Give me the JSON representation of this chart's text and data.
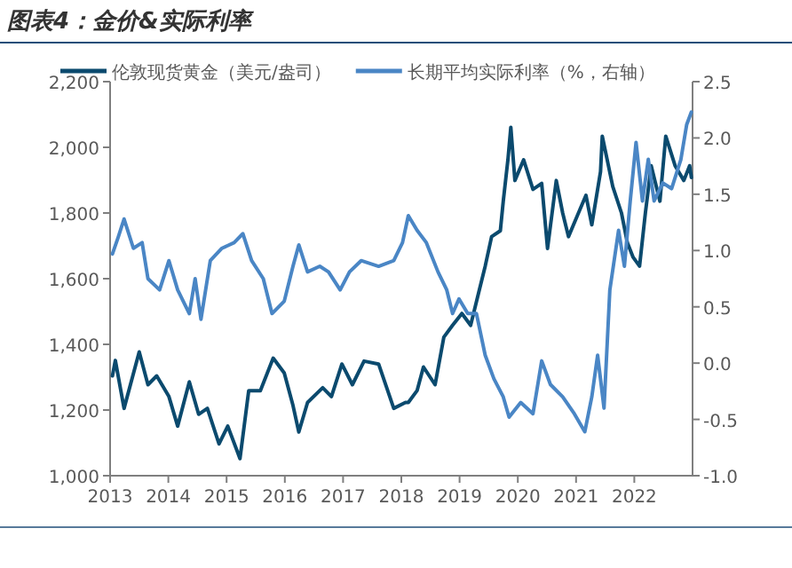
{
  "chart_data": {
    "type": "line",
    "title": "图表4：金价&实际利率",
    "legend": "top",
    "marker": "none",
    "line_style": "solid",
    "grid": false,
    "xlim": [
      2013,
      2023
    ],
    "xticks": [
      2013,
      2014,
      2015,
      2016,
      2017,
      2018,
      2019,
      2020,
      2021,
      2022
    ],
    "ylim": [
      1000,
      2200
    ],
    "yticks": [
      {
        "value": 1000,
        "label": "1,000"
      },
      {
        "value": 1200,
        "label": "1,200"
      },
      {
        "value": 1400,
        "label": "1,400"
      },
      {
        "value": 1600,
        "label": "1,600"
      },
      {
        "value": 1800,
        "label": "1,800"
      },
      {
        "value": 2000,
        "label": "2,000"
      },
      {
        "value": 2200,
        "label": "2,200"
      }
    ],
    "y2lim": [
      -1.0,
      2.5
    ],
    "y2ticks": [
      {
        "value": -1,
        "label": "-1.0"
      },
      {
        "value": -0.5,
        "label": "-0.5"
      },
      {
        "value": 0,
        "label": "0.0"
      },
      {
        "value": 0.5,
        "label": "0.5"
      },
      {
        "value": 1,
        "label": "1.0"
      },
      {
        "value": 1.5,
        "label": "1.5"
      },
      {
        "value": 2,
        "label": "2.0"
      },
      {
        "value": 2.5,
        "label": "2.5"
      }
    ],
    "series": [
      {
        "name": "伦敦现货黄金（美元/盎司）",
        "color": "#0b4a6e",
        "x": [
          2013.04,
          2013.09,
          2013.24,
          2013.5,
          2013.65,
          2013.8,
          2014.01,
          2014.16,
          2014.36,
          2014.52,
          2014.67,
          2014.87,
          2015.02,
          2015.23,
          2015.38,
          2015.58,
          2015.8,
          2015.99,
          2016.14,
          2016.24,
          2016.39,
          2016.65,
          2016.8,
          2016.98,
          2017.16,
          2017.36,
          2017.61,
          2017.87,
          2018.07,
          2018.12,
          2018.27,
          2018.38,
          2018.58,
          2018.73,
          2018.88,
          2019.04,
          2019.19,
          2019.34,
          2019.44,
          2019.55,
          2019.7,
          2019.75,
          2019.83,
          2019.88,
          2019.95,
          2020.1,
          2020.26,
          2020.41,
          2020.51,
          2020.66,
          2020.77,
          2020.87,
          2021.02,
          2021.17,
          2021.27,
          2021.42,
          2021.45,
          2021.63,
          2021.78,
          2021.88,
          2021.98,
          2022.09,
          2022.19,
          2022.29,
          2022.44,
          2022.54,
          2022.7,
          2022.85,
          2022.95,
          2022.98
        ],
        "values": [
          1304,
          1351,
          1205,
          1377,
          1277,
          1304,
          1241,
          1151,
          1286,
          1187,
          1205,
          1097,
          1151,
          1052,
          1259,
          1259,
          1358,
          1313,
          1214,
          1133,
          1223,
          1268,
          1241,
          1340,
          1277,
          1349,
          1340,
          1205,
          1223,
          1223,
          1259,
          1331,
          1277,
          1422,
          1458,
          1494,
          1458,
          1566,
          1638,
          1728,
          1746,
          1836,
          1962,
          2061,
          1899,
          1962,
          1872,
          1890,
          1692,
          1899,
          1800,
          1728,
          1791,
          1854,
          1764,
          1926,
          2034,
          1881,
          1800,
          1710,
          1665,
          1638,
          1800,
          1944,
          1836,
          2034,
          1944,
          1899,
          1944,
          1908
        ]
      },
      {
        "name": "长期平均实际利率（%，右轴）",
        "color": "#4a86c5",
        "axis": "y2",
        "x": [
          2013.04,
          2013.14,
          2013.24,
          2013.4,
          2013.55,
          2013.65,
          2013.85,
          2014.01,
          2014.16,
          2014.36,
          2014.46,
          2014.56,
          2014.72,
          2014.92,
          2015.13,
          2015.28,
          2015.43,
          2015.63,
          2015.78,
          2015.99,
          2016.14,
          2016.24,
          2016.39,
          2016.6,
          2016.75,
          2016.95,
          2017.11,
          2017.31,
          2017.61,
          2017.87,
          2018.02,
          2018.12,
          2018.27,
          2018.43,
          2018.63,
          2018.78,
          2018.88,
          2018.99,
          2019.14,
          2019.29,
          2019.44,
          2019.59,
          2019.75,
          2019.85,
          2020.05,
          2020.26,
          2020.41,
          2020.56,
          2020.77,
          2020.97,
          2021.15,
          2021.27,
          2021.37,
          2021.48,
          2021.58,
          2021.73,
          2021.83,
          2021.93,
          2022.03,
          2022.14,
          2022.24,
          2022.34,
          2022.49,
          2022.64,
          2022.8,
          2022.9,
          2022.98
        ],
        "values": [
          0.97,
          1.12,
          1.28,
          1.02,
          1.07,
          0.75,
          0.65,
          0.91,
          0.65,
          0.44,
          0.75,
          0.39,
          0.91,
          1.02,
          1.07,
          1.15,
          0.91,
          0.75,
          0.44,
          0.55,
          0.86,
          1.05,
          0.81,
          0.86,
          0.81,
          0.65,
          0.81,
          0.91,
          0.86,
          0.91,
          1.07,
          1.31,
          1.18,
          1.07,
          0.81,
          0.65,
          0.44,
          0.57,
          0.44,
          0.44,
          0.07,
          -0.14,
          -0.3,
          -0.48,
          -0.35,
          -0.45,
          0.02,
          -0.19,
          -0.3,
          -0.45,
          -0.61,
          -0.3,
          0.07,
          -0.4,
          0.65,
          1.18,
          0.86,
          1.44,
          1.96,
          1.44,
          1.81,
          1.44,
          1.6,
          1.55,
          1.81,
          2.12,
          2.23
        ]
      }
    ]
  }
}
